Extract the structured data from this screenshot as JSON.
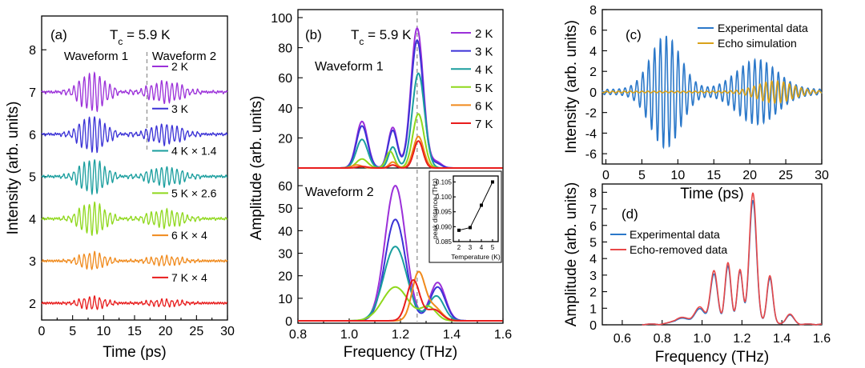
{
  "chart_data": [
    {
      "panel": "(a)",
      "type": "line",
      "title": "Tc = 5.9 K",
      "title_main": "T",
      "title_sub": "c",
      "title_rest": " = 5.9 K",
      "xlabel": "Time (ps)",
      "ylabel": "Intensity (arb. units)",
      "xlim": [
        0,
        30
      ],
      "ylim": [
        1.6,
        8.8
      ],
      "xticks": [
        "0",
        "5",
        "10",
        "15",
        "20",
        "25",
        "30"
      ],
      "yticks": [
        "2",
        "3",
        "4",
        "5",
        "6",
        "7",
        "8"
      ],
      "annotations": [
        "Waveform 1",
        "Waveform 2"
      ],
      "divider_x": 17,
      "series": [
        {
          "name": "2 K",
          "offset": 7,
          "amplitude": 0.45,
          "color": "#9b30d9"
        },
        {
          "name": "3 K",
          "offset": 6,
          "amplitude": 0.42,
          "color": "#3b32d6"
        },
        {
          "name": "4 K × 1.4",
          "offset": 5,
          "amplitude": 0.4,
          "color": "#1a9e9e"
        },
        {
          "name": "5 K × 2.6",
          "offset": 4,
          "amplitude": 0.38,
          "color": "#8fd81c"
        },
        {
          "name": "6 K × 4",
          "offset": 3,
          "amplitude": 0.2,
          "color": "#f08a1c"
        },
        {
          "name": "7 K × 4",
          "offset": 2,
          "amplitude": 0.15,
          "color": "#e81c1c"
        }
      ]
    },
    {
      "panel": "(b)",
      "type": "line",
      "title": "Tc = 5.9 K",
      "title_main": "T",
      "title_sub": "c",
      "title_rest": " = 5.9 K",
      "xlabel": "Frequency (THz)",
      "ylabel": "Amplitude (arb. units)",
      "xlim": [
        0.8,
        1.6
      ],
      "xticks": [
        "0.8",
        "1.0",
        "1.2",
        "1.4",
        "1.6"
      ],
      "divider_x": 1.265,
      "top": {
        "label": "Waveform 1",
        "ylim": [
          0,
          100
        ],
        "yticks": [
          "20",
          "40",
          "60",
          "80",
          "100"
        ],
        "series": [
          {
            "name": "2 K",
            "color": "#9b30d9",
            "peaks": [
              [
                1.05,
                31,
                0.022
              ],
              [
                1.17,
                27,
                0.018
              ],
              [
                1.265,
                93,
                0.024
              ],
              [
                1.34,
                4,
                0.02
              ]
            ]
          },
          {
            "name": "3 K",
            "color": "#3b32d6",
            "peaks": [
              [
                1.05,
                28,
                0.022
              ],
              [
                1.17,
                25,
                0.018
              ],
              [
                1.265,
                85,
                0.024
              ],
              [
                1.34,
                3,
                0.02
              ]
            ]
          },
          {
            "name": "4 K",
            "color": "#1a9e9e",
            "peaks": [
              [
                1.05,
                19,
                0.022
              ],
              [
                1.17,
                14,
                0.016
              ],
              [
                1.27,
                63,
                0.024
              ]
            ]
          },
          {
            "name": "5 K",
            "color": "#8fd81c",
            "peaks": [
              [
                1.05,
                6,
                0.022
              ],
              [
                1.16,
                11,
                0.016
              ],
              [
                1.27,
                36,
                0.022
              ]
            ]
          },
          {
            "name": "6 K",
            "color": "#f08a1c",
            "peaks": [
              [
                1.03,
                2,
                0.02
              ],
              [
                1.17,
                4,
                0.014
              ],
              [
                1.27,
                21,
                0.02
              ]
            ]
          },
          {
            "name": "7 K",
            "color": "#e81c1c",
            "peaks": [
              [
                1.05,
                1,
                0.02
              ],
              [
                1.17,
                2,
                0.014
              ],
              [
                1.27,
                18,
                0.018
              ]
            ]
          }
        ]
      },
      "bottom": {
        "label": "Waveform 2",
        "ylim": [
          0,
          65
        ],
        "yticks": [
          "0",
          "10",
          "20",
          "30",
          "40",
          "50",
          "60"
        ],
        "series": [
          {
            "name": "2 K",
            "color": "#9b30d9",
            "peaks": [
              [
                1.18,
                60,
                0.04
              ],
              [
                1.345,
                17,
                0.03
              ]
            ]
          },
          {
            "name": "3 K",
            "color": "#3b32d6",
            "peaks": [
              [
                1.18,
                45,
                0.04
              ],
              [
                1.345,
                15,
                0.03
              ]
            ]
          },
          {
            "name": "4 K",
            "color": "#1a9e9e",
            "peaks": [
              [
                1.18,
                33,
                0.045
              ],
              [
                1.34,
                11,
                0.03
              ]
            ]
          },
          {
            "name": "5 K",
            "color": "#8fd81c",
            "peaks": [
              [
                1.18,
                15,
                0.05
              ],
              [
                1.31,
                6,
                0.03
              ]
            ]
          },
          {
            "name": "6 K",
            "color": "#f08a1c",
            "peaks": [
              [
                1.27,
                21,
                0.025
              ],
              [
                1.33,
                6,
                0.03
              ]
            ]
          },
          {
            "name": "7 K",
            "color": "#e81c1c",
            "peaks": [
              [
                1.25,
                18,
                0.025
              ],
              [
                1.33,
                5,
                0.03
              ]
            ]
          }
        ]
      },
      "inset": {
        "type": "line",
        "xlabel": "Temperature (K)",
        "ylabel": "peak distance (THz)",
        "x": [
          2,
          3,
          4,
          5
        ],
        "y": [
          0.0888,
          0.0897,
          0.0972,
          0.105
        ],
        "xlim": [
          1.5,
          5.5
        ],
        "ylim": [
          0.085,
          0.107
        ],
        "xticks": [
          "2",
          "3",
          "4",
          "5"
        ],
        "yticks": [
          "0.085",
          "0.090",
          "0.095",
          "0.100",
          "0.105"
        ]
      }
    },
    {
      "panel": "(c)",
      "type": "line",
      "xlabel": "Time (ps)",
      "ylabel": "Intensity (arb. units)",
      "xlim": [
        -0.5,
        30
      ],
      "ylim": [
        -7,
        8
      ],
      "xticks": [
        "0",
        "5",
        "10",
        "15",
        "20",
        "25",
        "30"
      ],
      "yticks": [
        "-6",
        "-4",
        "-2",
        "0",
        "2",
        "4",
        "6",
        "8"
      ],
      "series": [
        {
          "name": "Experimental data",
          "color": "#2b78c9"
        },
        {
          "name": "Echo simulation",
          "color": "#d9a21a"
        }
      ]
    },
    {
      "panel": "(d)",
      "type": "line",
      "xlabel": "Frequency (THz)",
      "ylabel": "Amplitude (arb. units)",
      "xlim": [
        0.5,
        1.6
      ],
      "ylim": [
        0,
        8.5
      ],
      "xticks": [
        "0.6",
        "0.8",
        "1.0",
        "1.2",
        "1.4",
        "1.6"
      ],
      "yticks": [
        "0",
        "1",
        "2",
        "3",
        "4",
        "5",
        "6",
        "7",
        "8"
      ],
      "series": [
        {
          "name": "Experimental data",
          "color": "#2b78c9",
          "peaks": [
            [
              0.9,
              0.35,
              0.04
            ],
            [
              0.99,
              0.9,
              0.025
            ],
            [
              1.06,
              3.0,
              0.018
            ],
            [
              1.13,
              3.5,
              0.015
            ],
            [
              1.19,
              3.2,
              0.014
            ],
            [
              1.255,
              7.5,
              0.018
            ],
            [
              1.34,
              2.8,
              0.015
            ],
            [
              1.44,
              0.55,
              0.02
            ]
          ]
        },
        {
          "name": "Echo-removed data",
          "color": "#e84848",
          "peaks": [
            [
              0.9,
              0.4,
              0.04
            ],
            [
              0.99,
              1.0,
              0.025
            ],
            [
              1.06,
              3.2,
              0.018
            ],
            [
              1.13,
              3.7,
              0.015
            ],
            [
              1.19,
              3.3,
              0.014
            ],
            [
              1.255,
              7.95,
              0.018
            ],
            [
              1.34,
              2.95,
              0.015
            ],
            [
              1.44,
              0.6,
              0.02
            ]
          ]
        }
      ]
    }
  ]
}
